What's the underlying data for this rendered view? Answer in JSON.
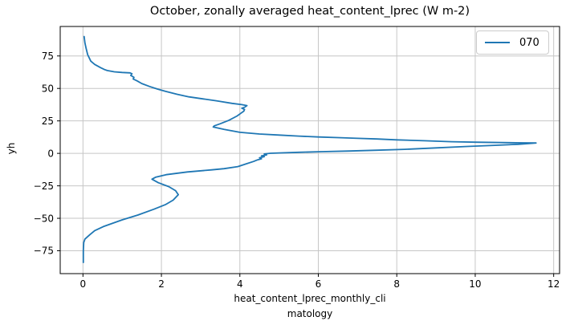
{
  "window": {
    "background": "#ffffff"
  },
  "chart_data": {
    "type": "line",
    "title": "October, zonally averaged heat_content_lprec (W m-2)",
    "xlabel_lines": [
      "heat_content_lprec_monthly_cli",
      "matology"
    ],
    "xlabel_full": "heat_content_lprec_monthly_climatology",
    "ylabel": "yh",
    "xticks": [
      0,
      2,
      4,
      6,
      8,
      10,
      12
    ],
    "yticks": [
      75,
      50,
      25,
      0,
      -25,
      -50,
      -75
    ],
    "xlim": [
      -0.58,
      12.15
    ],
    "ylim": [
      -92.6,
      97.7
    ],
    "grid": true,
    "grid_color": "#c6c6c6",
    "spine_color": "#000000",
    "legend_position": "upper right",
    "legend_entries": [
      {
        "label": "070",
        "color": "#1f77b4"
      }
    ],
    "series": [
      {
        "name": "070",
        "color": "#1f77b4",
        "points": [
          [
            0.03,
            90
          ],
          [
            0.05,
            85
          ],
          [
            0.08,
            81
          ],
          [
            0.12,
            76
          ],
          [
            0.2,
            71
          ],
          [
            0.3,
            68.5
          ],
          [
            0.45,
            66
          ],
          [
            0.55,
            64.5
          ],
          [
            0.62,
            63.8
          ],
          [
            0.8,
            62.8
          ],
          [
            1.0,
            62.3
          ],
          [
            1.2,
            62.0
          ],
          [
            1.25,
            61.3
          ],
          [
            1.22,
            60.0
          ],
          [
            1.3,
            58.5
          ],
          [
            1.28,
            57.3
          ],
          [
            1.38,
            55.8
          ],
          [
            1.5,
            53.8
          ],
          [
            1.7,
            51.5
          ],
          [
            1.9,
            49.5
          ],
          [
            2.1,
            47.8
          ],
          [
            2.4,
            45.5
          ],
          [
            2.7,
            43.5
          ],
          [
            3.0,
            42.2
          ],
          [
            3.4,
            40.5
          ],
          [
            3.8,
            38.5
          ],
          [
            4.05,
            37.5
          ],
          [
            4.18,
            36.8
          ],
          [
            4.12,
            35.5
          ],
          [
            4.05,
            34.8
          ],
          [
            4.12,
            33.8
          ],
          [
            4.1,
            32.5
          ],
          [
            4.02,
            30.8
          ],
          [
            3.93,
            28.8
          ],
          [
            3.72,
            25.5
          ],
          [
            3.5,
            22.8
          ],
          [
            3.35,
            21.2
          ],
          [
            3.32,
            20.3
          ],
          [
            3.6,
            18.5
          ],
          [
            4.0,
            16.2
          ],
          [
            4.5,
            14.9
          ],
          [
            5.0,
            14.1
          ],
          [
            5.5,
            13.3
          ],
          [
            6.0,
            12.6
          ],
          [
            6.5,
            12.1
          ],
          [
            7.0,
            11.6
          ],
          [
            7.5,
            11.1
          ],
          [
            8.0,
            10.4
          ],
          [
            8.7,
            9.7
          ],
          [
            9.4,
            9.0
          ],
          [
            10.0,
            8.6
          ],
          [
            10.7,
            8.3
          ],
          [
            11.2,
            8.1
          ],
          [
            11.55,
            8.0
          ],
          [
            11.1,
            7.0
          ],
          [
            10.5,
            6.2
          ],
          [
            9.8,
            5.3
          ],
          [
            9.0,
            4.2
          ],
          [
            8.2,
            3.1
          ],
          [
            7.5,
            2.4
          ],
          [
            6.8,
            1.8
          ],
          [
            6.1,
            1.3
          ],
          [
            5.5,
            0.8
          ],
          [
            5.0,
            0.3
          ],
          [
            4.78,
            0.05
          ],
          [
            4.62,
            -0.5
          ],
          [
            4.68,
            -1.2
          ],
          [
            4.55,
            -1.9
          ],
          [
            4.62,
            -2.6
          ],
          [
            4.5,
            -3.4
          ],
          [
            4.55,
            -4.2
          ],
          [
            4.45,
            -5.0
          ],
          [
            4.35,
            -6.2
          ],
          [
            4.15,
            -8.2
          ],
          [
            3.95,
            -10.2
          ],
          [
            3.6,
            -11.8
          ],
          [
            3.28,
            -12.7
          ],
          [
            2.66,
            -14.3
          ],
          [
            2.12,
            -16.4
          ],
          [
            1.85,
            -18.4
          ],
          [
            1.76,
            -19.9
          ],
          [
            1.92,
            -22.6
          ],
          [
            2.19,
            -25.6
          ],
          [
            2.36,
            -28.7
          ],
          [
            2.43,
            -31.8
          ],
          [
            2.3,
            -36.0
          ],
          [
            2.1,
            -39.5
          ],
          [
            1.81,
            -43.0
          ],
          [
            1.4,
            -47.5
          ],
          [
            1.0,
            -51.2
          ],
          [
            0.52,
            -56.4
          ],
          [
            0.3,
            -59.5
          ],
          [
            0.18,
            -62.5
          ],
          [
            0.05,
            -66.0
          ],
          [
            0.02,
            -68.6
          ],
          [
            0.01,
            -75.0
          ],
          [
            0.01,
            -84.0
          ]
        ]
      }
    ]
  }
}
